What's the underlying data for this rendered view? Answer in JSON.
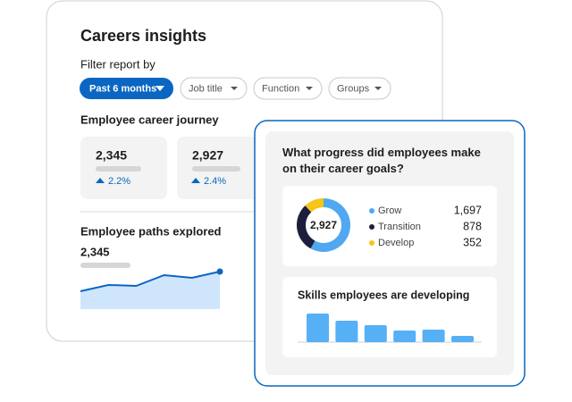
{
  "card": {
    "title": "Careers insights",
    "filter_label": "Filter report by",
    "filters": [
      "Past 6 months",
      "Job title",
      "Function",
      "Groups"
    ]
  },
  "journey": {
    "title": "Employee career journey",
    "stats": [
      {
        "value": "2,345",
        "change": "2.2%"
      },
      {
        "value": "2,927",
        "change": "2.4%"
      }
    ]
  },
  "paths": {
    "title": "Employee paths explored",
    "value": "2,345",
    "chart": {
      "type": "area",
      "values": [
        20,
        27,
        26,
        38,
        35,
        42
      ],
      "color": "#0a66c2"
    }
  },
  "progress": {
    "title": "What progress did employees make on their career goals?",
    "donut": {
      "type": "donut",
      "total": "2,927",
      "categories": [
        "Grow",
        "Transition",
        "Develop"
      ],
      "values": [
        1697,
        878,
        352
      ],
      "value_labels": [
        "1,697",
        "878",
        "352"
      ],
      "colors": [
        "#4fa8f0",
        "#1b1f3b",
        "#f5c518"
      ]
    }
  },
  "skills": {
    "title": "Skills employees are developing",
    "chart": {
      "type": "bar",
      "values": [
        32,
        24,
        19,
        13,
        14,
        7
      ],
      "color": "#56b0f5"
    }
  }
}
